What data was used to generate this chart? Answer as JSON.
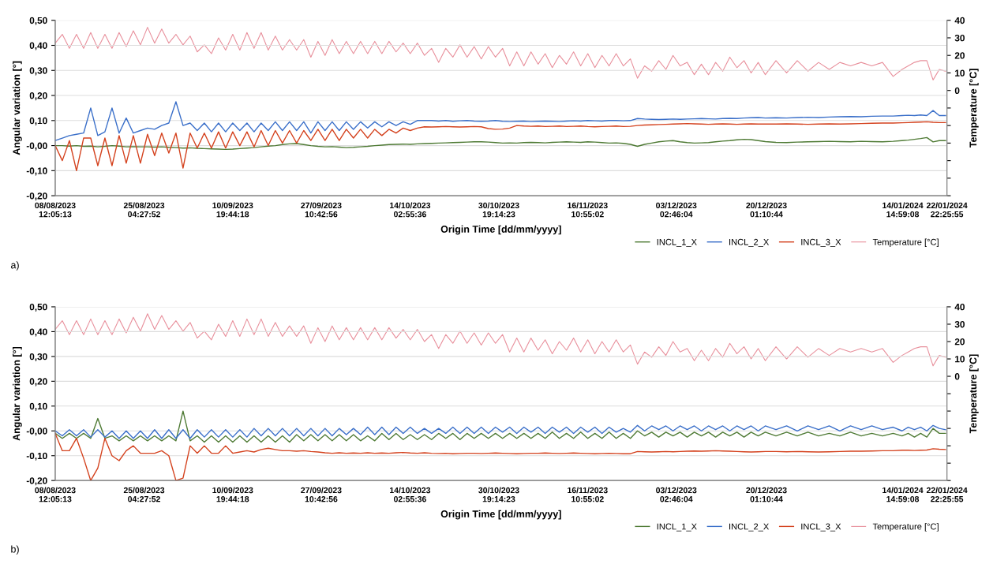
{
  "chart_data": [
    {
      "type": "line",
      "xlabel": "Origin Time [dd/mm/yyyy]",
      "ylabel": "Angular variation [°]",
      "y2label": "Temperature [°C]",
      "annotations": [
        "a)"
      ],
      "xlim": [
        "2023-08-08T12:00",
        "2024-01-22T22:25"
      ],
      "xticks": [
        {
          "value": "2023-08-08T12:05",
          "label": "08/08/2023\n12:05:13"
        },
        {
          "value": "2023-08-25T04:27",
          "label": "25/08/2023\n04:27:52"
        },
        {
          "value": "2023-09-10T19:44",
          "label": "10/09/2023\n19:44:18"
        },
        {
          "value": "2023-09-27T10:42",
          "label": "27/09/2023\n10:42:56"
        },
        {
          "value": "2023-10-14T02:55",
          "label": "14/10/2023\n02:55:36"
        },
        {
          "value": "2023-10-30T19:14",
          "label": "30/10/2023\n19:14:23"
        },
        {
          "value": "2023-11-16T10:55",
          "label": "16/11/2023\n10:55:02"
        },
        {
          "value": "2023-12-03T02:46",
          "label": "03/12/2023\n02:46:04"
        },
        {
          "value": "2023-12-20T01:10",
          "label": "20/12/2023\n01:10:44"
        },
        {
          "value": "2024-01-14T14:59",
          "label": "14/01/2024\n14:59:08"
        },
        {
          "value": "2024-01-22T22:25",
          "label": "22/01/2024\n22:25:55"
        }
      ],
      "ylim": [
        -0.2,
        0.5
      ],
      "yticks": [
        {
          "value": -0.2,
          "label": "-0,20"
        },
        {
          "value": -0.1,
          "label": "-0,10"
        },
        {
          "value": 0,
          "label": "-0,00"
        },
        {
          "value": 0.1,
          "label": "0,10"
        },
        {
          "value": 0.2,
          "label": "0,20"
        },
        {
          "value": 0.3,
          "label": "0,30"
        },
        {
          "value": 0.4,
          "label": "0,40"
        },
        {
          "value": 0.5,
          "label": "0,50"
        }
      ],
      "y2lim": [
        -60,
        40
      ],
      "y2ticks": [
        {
          "value": -60,
          "label": null
        },
        {
          "value": -50,
          "label": null
        },
        {
          "value": -40,
          "label": null
        },
        {
          "value": -30,
          "label": null
        },
        {
          "value": -20,
          "label": null
        },
        {
          "value": -10,
          "label": null
        },
        0,
        10,
        20,
        30,
        40
      ],
      "grid": "y",
      "legend": "bottom right",
      "x": [
        "2023-08-08T12:00",
        "2023-08-09T20:00",
        "2023-08-11T04:00",
        "2023-08-12T12:00",
        "2023-08-13T20:00",
        "2023-08-15T04:00",
        "2023-08-16T12:00",
        "2023-08-17T20:00",
        "2023-08-19T04:00",
        "2023-08-20T12:00",
        "2023-08-21T20:00",
        "2023-08-23T04:00",
        "2023-08-24T12:00",
        "2023-08-25T20:00",
        "2023-08-27T04:00",
        "2023-08-28T12:00",
        "2023-08-29T20:00",
        "2023-08-31T04:00",
        "2023-09-01T12:00",
        "2023-09-02T20:00",
        "2023-09-04T04:00",
        "2023-09-05T12:00",
        "2023-09-06T20:00",
        "2023-09-08T04:00",
        "2023-09-09T12:00",
        "2023-09-10T20:00",
        "2023-09-12T04:00",
        "2023-09-13T12:00",
        "2023-09-14T20:00",
        "2023-09-16T04:00",
        "2023-09-17T12:00",
        "2023-09-18T20:00",
        "2023-09-20T04:00",
        "2023-09-21T12:00",
        "2023-09-22T20:00",
        "2023-09-24T04:00",
        "2023-09-25T12:00",
        "2023-09-26T20:00",
        "2023-09-28T04:00",
        "2023-09-29T12:00",
        "2023-09-30T20:00",
        "2023-10-02T04:00",
        "2023-10-03T12:00",
        "2023-10-04T20:00",
        "2023-10-06T04:00",
        "2023-10-07T12:00",
        "2023-10-08T20:00",
        "2023-10-10T04:00",
        "2023-10-11T12:00",
        "2023-10-12T20:00",
        "2023-10-14T04:00",
        "2023-10-15T12:00",
        "2023-10-16T20:00",
        "2023-10-18T04:00",
        "2023-10-19T12:00",
        "2023-10-20T20:00",
        "2023-10-22T04:00",
        "2023-10-23T12:00",
        "2023-10-24T20:00",
        "2023-10-26T04:00",
        "2023-10-27T12:00",
        "2023-10-28T20:00",
        "2023-10-30T04:00",
        "2023-10-31T12:00",
        "2023-11-01T20:00",
        "2023-11-03T04:00",
        "2023-11-04T12:00",
        "2023-11-05T20:00",
        "2023-11-07T04:00",
        "2023-11-08T12:00",
        "2023-11-09T20:00",
        "2023-11-11T04:00",
        "2023-11-12T12:00",
        "2023-11-13T20:00",
        "2023-11-15T04:00",
        "2023-11-16T12:00",
        "2023-11-17T20:00",
        "2023-11-19T04:00",
        "2023-11-20T12:00",
        "2023-11-21T20:00",
        "2023-11-23T04:00",
        "2023-11-24T12:00",
        "2023-11-25T20:00",
        "2023-11-27T04:00",
        "2023-11-28T12:00",
        "2023-11-29T20:00",
        "2023-12-01T04:00",
        "2023-12-02T12:00",
        "2023-12-03T20:00",
        "2023-12-05T04:00",
        "2023-12-06T12:00",
        "2023-12-07T20:00",
        "2023-12-09T04:00",
        "2023-12-10T12:00",
        "2023-12-11T20:00",
        "2023-12-13T04:00",
        "2023-12-14T12:00",
        "2023-12-15T20:00",
        "2023-12-17T04:00",
        "2023-12-18T12:00",
        "2023-12-19T20:00",
        "2023-12-21T20:00",
        "2023-12-23T20:00",
        "2023-12-25T20:00",
        "2023-12-27T20:00",
        "2023-12-29T20:00",
        "2023-12-31T20:00",
        "2024-01-02T20:00",
        "2024-01-04T20:00",
        "2024-01-06T20:00",
        "2024-01-08T20:00",
        "2024-01-10T20:00",
        "2024-01-12T20:00",
        "2024-01-14T12:00",
        "2024-01-15T16:00",
        "2024-01-16T20:00",
        "2024-01-18T00:00",
        "2024-01-19T04:00",
        "2024-01-20T08:00",
        "2024-01-21T12:00",
        "2024-01-22T16:00"
      ],
      "series": [
        {
          "name": "INCL_1_X",
          "color": "#4e7a34",
          "values": [
            0.0,
            0.0,
            -0.002,
            0.0,
            -0.003,
            -0.002,
            -0.005,
            -0.003,
            0.0,
            -0.002,
            -0.005,
            -0.004,
            -0.005,
            -0.005,
            -0.006,
            -0.005,
            -0.007,
            -0.008,
            -0.01,
            -0.009,
            -0.011,
            -0.012,
            -0.013,
            -0.014,
            -0.015,
            -0.014,
            -0.012,
            -0.01,
            -0.008,
            -0.005,
            -0.002,
            0.0,
            0.004,
            0.007,
            0.008,
            0.004,
            0.0,
            -0.003,
            -0.005,
            -0.004,
            -0.006,
            -0.008,
            -0.007,
            -0.005,
            -0.003,
            0.0,
            0.002,
            0.004,
            0.005,
            0.006,
            0.005,
            0.007,
            0.008,
            0.009,
            0.01,
            0.011,
            0.012,
            0.013,
            0.014,
            0.015,
            0.015,
            0.014,
            0.012,
            0.01,
            0.011,
            0.01,
            0.012,
            0.013,
            0.012,
            0.011,
            0.013,
            0.014,
            0.015,
            0.014,
            0.013,
            0.015,
            0.014,
            0.012,
            0.01,
            0.011,
            0.009,
            0.005,
            -0.003,
            0.005,
            0.01,
            0.015,
            0.018,
            0.02,
            0.015,
            0.012,
            0.01,
            0.011,
            0.012,
            0.015,
            0.018,
            0.02,
            0.023,
            0.025,
            0.024,
            0.02,
            0.016,
            0.013,
            0.012,
            0.014,
            0.015,
            0.016,
            0.017,
            0.016,
            0.015,
            0.017,
            0.016,
            0.015,
            0.017,
            0.02,
            0.022,
            0.025,
            0.028,
            0.032,
            0.015,
            0.02,
            0.02
          ]
        },
        {
          "name": "INCL_2_X",
          "color": "#3a6fc9",
          "values": [
            0.02,
            0.03,
            0.04,
            0.045,
            0.05,
            0.15,
            0.04,
            0.055,
            0.15,
            0.05,
            0.11,
            0.05,
            0.06,
            0.07,
            0.065,
            0.08,
            0.09,
            0.175,
            0.08,
            0.09,
            0.06,
            0.09,
            0.055,
            0.09,
            0.055,
            0.09,
            0.06,
            0.09,
            0.055,
            0.09,
            0.06,
            0.095,
            0.06,
            0.095,
            0.06,
            0.095,
            0.05,
            0.095,
            0.06,
            0.095,
            0.06,
            0.095,
            0.065,
            0.095,
            0.07,
            0.095,
            0.075,
            0.095,
            0.08,
            0.095,
            0.085,
            0.1,
            0.1,
            0.1,
            0.098,
            0.1,
            0.097,
            0.099,
            0.1,
            0.098,
            0.097,
            0.098,
            0.1,
            0.097,
            0.096,
            0.097,
            0.098,
            0.096,
            0.097,
            0.098,
            0.097,
            0.096,
            0.098,
            0.099,
            0.098,
            0.1,
            0.099,
            0.098,
            0.1,
            0.1,
            0.099,
            0.1,
            0.108,
            0.106,
            0.105,
            0.104,
            0.105,
            0.106,
            0.105,
            0.106,
            0.107,
            0.108,
            0.107,
            0.106,
            0.108,
            0.109,
            0.108,
            0.11,
            0.111,
            0.112,
            0.11,
            0.111,
            0.11,
            0.112,
            0.113,
            0.112,
            0.114,
            0.115,
            0.116,
            0.115,
            0.117,
            0.118,
            0.118,
            0.12,
            0.121,
            0.12,
            0.122,
            0.12,
            0.14,
            0.12,
            0.12
          ]
        },
        {
          "name": "INCL_3_X",
          "color": "#d4421e",
          "values": [
            0.0,
            -0.06,
            0.02,
            -0.1,
            0.03,
            0.03,
            -0.08,
            0.03,
            -0.08,
            0.04,
            -0.07,
            0.04,
            -0.07,
            0.045,
            -0.04,
            0.05,
            -0.03,
            0.05,
            -0.09,
            0.05,
            -0.01,
            0.05,
            -0.01,
            0.055,
            -0.01,
            0.055,
            0.0,
            0.055,
            -0.005,
            0.06,
            0.0,
            0.06,
            0.01,
            0.06,
            0.01,
            0.06,
            0.02,
            0.065,
            0.02,
            0.065,
            0.02,
            0.065,
            0.03,
            0.065,
            0.03,
            0.065,
            0.04,
            0.065,
            0.05,
            0.07,
            0.06,
            0.07,
            0.075,
            0.074,
            0.075,
            0.076,
            0.075,
            0.074,
            0.075,
            0.076,
            0.075,
            0.068,
            0.065,
            0.066,
            0.07,
            0.08,
            0.078,
            0.077,
            0.078,
            0.076,
            0.077,
            0.078,
            0.076,
            0.077,
            0.078,
            0.076,
            0.075,
            0.076,
            0.077,
            0.078,
            0.076,
            0.077,
            0.08,
            0.082,
            0.083,
            0.084,
            0.085,
            0.086,
            0.087,
            0.088,
            0.087,
            0.086,
            0.085,
            0.086,
            0.087,
            0.086,
            0.085,
            0.086,
            0.087,
            0.086,
            0.086,
            0.086,
            0.087,
            0.086,
            0.085,
            0.086,
            0.087,
            0.086,
            0.087,
            0.088,
            0.089,
            0.09,
            0.09,
            0.091,
            0.092,
            0.093,
            0.094,
            0.095,
            0.093,
            0.092,
            0.092
          ]
        },
        {
          "name": "Temperature [°C]",
          "color": "#e8909c",
          "axis": "y2",
          "values": [
            27,
            32,
            24,
            32,
            24,
            33,
            24,
            32,
            24,
            33,
            25,
            34,
            26,
            36,
            27,
            35,
            27,
            32,
            26,
            31,
            22,
            26,
            21,
            30,
            23,
            32,
            23,
            33,
            24,
            33,
            23,
            31,
            23,
            29,
            23,
            29,
            19,
            28,
            20,
            29,
            21,
            28,
            21,
            28,
            21,
            28,
            21,
            28,
            22,
            27,
            21,
            27,
            20,
            24,
            16,
            24,
            19,
            26,
            19,
            25,
            18,
            25,
            19,
            24,
            14,
            22,
            14,
            22,
            15,
            21,
            13,
            20,
            15,
            22,
            14,
            21,
            13,
            20,
            14,
            21,
            14,
            18,
            7,
            14,
            11,
            17,
            12,
            20,
            14,
            16,
            9,
            15,
            9,
            16,
            11,
            19,
            13,
            17,
            10,
            16,
            9,
            17,
            10,
            17,
            11,
            16,
            12,
            16,
            14,
            16,
            14,
            16,
            8,
            12,
            14,
            16,
            17,
            17,
            6,
            12,
            11
          ]
        }
      ]
    },
    {
      "type": "line",
      "xlabel": "Origin Time [dd/mm/yyyy]",
      "ylabel": "Angular variation [°]",
      "y2label": "Temperature [°C]",
      "annotations": [
        "b)"
      ],
      "xlim": [
        "2023-08-08T12:00",
        "2024-01-22T22:25"
      ],
      "xticks": [
        {
          "value": "2023-08-08T12:05",
          "label": "08/08/2023\n12:05:13"
        },
        {
          "value": "2023-08-25T04:27",
          "label": "25/08/2023\n04:27:52"
        },
        {
          "value": "2023-09-10T19:44",
          "label": "10/09/2023\n19:44:18"
        },
        {
          "value": "2023-09-27T10:42",
          "label": "27/09/2023\n10:42:56"
        },
        {
          "value": "2023-10-14T02:55",
          "label": "14/10/2023\n02:55:36"
        },
        {
          "value": "2023-10-30T19:14",
          "label": "30/10/2023\n19:14:23"
        },
        {
          "value": "2023-11-16T10:55",
          "label": "16/11/2023\n10:55:02"
        },
        {
          "value": "2023-12-03T02:46",
          "label": "03/12/2023\n02:46:04"
        },
        {
          "value": "2023-12-20T01:10",
          "label": "20/12/2023\n01:10:44"
        },
        {
          "value": "2024-01-14T14:59",
          "label": "14/01/2024\n14:59:08"
        },
        {
          "value": "2024-01-22T22:25",
          "label": "22/01/2024\n22:25:55"
        }
      ],
      "ylim": [
        -0.2,
        0.5
      ],
      "yticks": [
        {
          "value": -0.2,
          "label": "-0,20"
        },
        {
          "value": -0.1,
          "label": "-0,10"
        },
        {
          "value": 0,
          "label": "-0,00"
        },
        {
          "value": 0.1,
          "label": "0,10"
        },
        {
          "value": 0.2,
          "label": "0,20"
        },
        {
          "value": 0.3,
          "label": "0,30"
        },
        {
          "value": 0.4,
          "label": "0,40"
        },
        {
          "value": 0.5,
          "label": "0,50"
        }
      ],
      "y2lim": [
        -60,
        40
      ],
      "y2ticks": [
        {
          "value": -60,
          "label": null
        },
        {
          "value": -50,
          "label": null
        },
        {
          "value": -40,
          "label": null
        },
        {
          "value": -30,
          "label": null
        },
        {
          "value": -20,
          "label": null
        },
        {
          "value": -10,
          "label": null
        },
        0,
        10,
        20,
        30,
        40
      ],
      "grid": "y",
      "legend": "bottom right",
      "x": [
        "2023-08-08T12:00",
        "2023-08-09T20:00",
        "2023-08-11T04:00",
        "2023-08-12T12:00",
        "2023-08-13T20:00",
        "2023-08-15T04:00",
        "2023-08-16T12:00",
        "2023-08-17T20:00",
        "2023-08-19T04:00",
        "2023-08-20T12:00",
        "2023-08-21T20:00",
        "2023-08-23T04:00",
        "2023-08-24T12:00",
        "2023-08-25T20:00",
        "2023-08-27T04:00",
        "2023-08-28T12:00",
        "2023-08-29T20:00",
        "2023-08-31T04:00",
        "2023-09-01T12:00",
        "2023-09-02T20:00",
        "2023-09-04T04:00",
        "2023-09-05T12:00",
        "2023-09-06T20:00",
        "2023-09-08T04:00",
        "2023-09-09T12:00",
        "2023-09-10T20:00",
        "2023-09-12T04:00",
        "2023-09-13T12:00",
        "2023-09-14T20:00",
        "2023-09-16T04:00",
        "2023-09-17T12:00",
        "2023-09-18T20:00",
        "2023-09-20T04:00",
        "2023-09-21T12:00",
        "2023-09-22T20:00",
        "2023-09-24T04:00",
        "2023-09-25T12:00",
        "2023-09-26T20:00",
        "2023-09-28T04:00",
        "2023-09-29T12:00",
        "2023-09-30T20:00",
        "2023-10-02T04:00",
        "2023-10-03T12:00",
        "2023-10-04T20:00",
        "2023-10-06T04:00",
        "2023-10-07T12:00",
        "2023-10-08T20:00",
        "2023-10-10T04:00",
        "2023-10-11T12:00",
        "2023-10-12T20:00",
        "2023-10-14T04:00",
        "2023-10-15T12:00",
        "2023-10-16T20:00",
        "2023-10-18T04:00",
        "2023-10-19T12:00",
        "2023-10-20T20:00",
        "2023-10-22T04:00",
        "2023-10-23T12:00",
        "2023-10-24T20:00",
        "2023-10-26T04:00",
        "2023-10-27T12:00",
        "2023-10-28T20:00",
        "2023-10-30T04:00",
        "2023-10-31T12:00",
        "2023-11-01T20:00",
        "2023-11-03T04:00",
        "2023-11-04T12:00",
        "2023-11-05T20:00",
        "2023-11-07T04:00",
        "2023-11-08T12:00",
        "2023-11-09T20:00",
        "2023-11-11T04:00",
        "2023-11-12T12:00",
        "2023-11-13T20:00",
        "2023-11-15T04:00",
        "2023-11-16T12:00",
        "2023-11-17T20:00",
        "2023-11-19T04:00",
        "2023-11-20T12:00",
        "2023-11-21T20:00",
        "2023-11-23T04:00",
        "2023-11-24T12:00",
        "2023-11-25T20:00",
        "2023-11-27T04:00",
        "2023-11-28T12:00",
        "2023-11-29T20:00",
        "2023-12-01T04:00",
        "2023-12-02T12:00",
        "2023-12-03T20:00",
        "2023-12-05T04:00",
        "2023-12-06T12:00",
        "2023-12-07T20:00",
        "2023-12-09T04:00",
        "2023-12-10T12:00",
        "2023-12-11T20:00",
        "2023-12-13T04:00",
        "2023-12-14T12:00",
        "2023-12-15T20:00",
        "2023-12-17T04:00",
        "2023-12-18T12:00",
        "2023-12-19T20:00",
        "2023-12-21T20:00",
        "2023-12-23T20:00",
        "2023-12-25T20:00",
        "2023-12-27T20:00",
        "2023-12-29T20:00",
        "2023-12-31T20:00",
        "2024-01-02T20:00",
        "2024-01-04T20:00",
        "2024-01-06T20:00",
        "2024-01-08T20:00",
        "2024-01-10T20:00",
        "2024-01-12T20:00",
        "2024-01-14T12:00",
        "2024-01-15T16:00",
        "2024-01-16T20:00",
        "2024-01-18T00:00",
        "2024-01-19T04:00",
        "2024-01-20T08:00",
        "2024-01-21T12:00",
        "2024-01-22T16:00"
      ],
      "series": [
        {
          "name": "INCL_1_X",
          "color": "#4e7a34",
          "values": [
            -0.01,
            -0.03,
            -0.01,
            -0.03,
            -0.01,
            -0.03,
            0.05,
            -0.03,
            -0.02,
            -0.04,
            -0.02,
            -0.04,
            -0.02,
            -0.04,
            -0.02,
            -0.04,
            -0.02,
            -0.04,
            0.08,
            -0.04,
            -0.02,
            -0.045,
            -0.02,
            -0.045,
            -0.02,
            -0.045,
            -0.02,
            -0.045,
            -0.02,
            -0.045,
            -0.02,
            -0.045,
            -0.02,
            -0.045,
            -0.015,
            -0.04,
            -0.015,
            -0.04,
            -0.015,
            -0.04,
            -0.015,
            -0.04,
            -0.015,
            -0.04,
            -0.02,
            -0.04,
            -0.01,
            -0.035,
            -0.01,
            -0.035,
            -0.015,
            -0.035,
            -0.015,
            -0.035,
            -0.01,
            -0.03,
            -0.01,
            -0.035,
            -0.01,
            -0.03,
            -0.01,
            -0.03,
            -0.01,
            -0.03,
            -0.01,
            -0.03,
            -0.01,
            -0.03,
            -0.01,
            -0.03,
            -0.005,
            -0.03,
            -0.01,
            -0.03,
            -0.005,
            -0.03,
            -0.01,
            -0.03,
            -0.005,
            -0.03,
            -0.01,
            -0.03,
            0.0,
            -0.02,
            -0.005,
            -0.025,
            -0.005,
            -0.02,
            -0.005,
            -0.025,
            -0.005,
            -0.02,
            -0.005,
            -0.025,
            -0.005,
            -0.02,
            -0.005,
            -0.025,
            -0.005,
            -0.02,
            -0.005,
            -0.02,
            -0.005,
            -0.02,
            -0.005,
            -0.02,
            -0.01,
            -0.02,
            -0.005,
            -0.02,
            -0.01,
            -0.02,
            -0.01,
            -0.02,
            -0.01,
            -0.025,
            -0.01,
            -0.025,
            0.01,
            -0.01,
            -0.01
          ]
        },
        {
          "name": "INCL_2_X",
          "color": "#3a6fc9",
          "values": [
            0.0,
            -0.02,
            0.005,
            -0.02,
            0.005,
            -0.025,
            0.005,
            -0.025,
            0.0,
            -0.03,
            0.0,
            -0.03,
            0.0,
            -0.03,
            0.005,
            -0.03,
            0.005,
            -0.03,
            0.005,
            -0.03,
            0.005,
            -0.025,
            0.005,
            -0.025,
            0.005,
            -0.025,
            0.005,
            -0.025,
            0.01,
            -0.02,
            0.01,
            -0.02,
            0.01,
            -0.02,
            0.01,
            -0.02,
            0.01,
            -0.02,
            0.01,
            -0.02,
            0.01,
            -0.015,
            0.01,
            -0.015,
            0.015,
            -0.015,
            0.015,
            -0.015,
            0.015,
            -0.01,
            0.015,
            -0.01,
            0.01,
            -0.01,
            0.01,
            -0.01,
            0.015,
            -0.01,
            0.015,
            -0.01,
            0.015,
            -0.01,
            0.015,
            -0.005,
            0.015,
            -0.01,
            0.015,
            -0.005,
            0.015,
            -0.01,
            0.015,
            -0.005,
            0.015,
            -0.01,
            0.015,
            -0.005,
            0.015,
            -0.01,
            0.015,
            -0.005,
            0.01,
            -0.005,
            0.022,
            0.0,
            0.02,
            0.005,
            0.02,
            0.0,
            0.02,
            0.005,
            0.02,
            0.0,
            0.02,
            0.005,
            0.02,
            0.0,
            0.02,
            0.005,
            0.02,
            0.0,
            0.02,
            0.005,
            0.02,
            0.0,
            0.02,
            0.005,
            0.02,
            0.0,
            0.02,
            0.005,
            0.02,
            0.005,
            0.015,
            0.0,
            0.015,
            0.005,
            0.015,
            0.0,
            0.022,
            0.01,
            0.005
          ]
        },
        {
          "name": "INCL_3_X",
          "color": "#d4421e",
          "values": [
            -0.01,
            -0.08,
            -0.08,
            -0.03,
            -0.11,
            -0.2,
            -0.15,
            -0.03,
            -0.1,
            -0.12,
            -0.08,
            -0.06,
            -0.09,
            -0.09,
            -0.09,
            -0.08,
            -0.1,
            -0.2,
            -0.19,
            -0.06,
            -0.09,
            -0.06,
            -0.09,
            -0.09,
            -0.06,
            -0.09,
            -0.085,
            -0.08,
            -0.085,
            -0.075,
            -0.07,
            -0.075,
            -0.08,
            -0.08,
            -0.082,
            -0.08,
            -0.083,
            -0.085,
            -0.088,
            -0.09,
            -0.088,
            -0.09,
            -0.089,
            -0.09,
            -0.088,
            -0.09,
            -0.089,
            -0.09,
            -0.088,
            -0.087,
            -0.089,
            -0.09,
            -0.088,
            -0.09,
            -0.091,
            -0.09,
            -0.092,
            -0.091,
            -0.09,
            -0.09,
            -0.091,
            -0.09,
            -0.089,
            -0.09,
            -0.091,
            -0.092,
            -0.091,
            -0.09,
            -0.09,
            -0.089,
            -0.09,
            -0.091,
            -0.09,
            -0.089,
            -0.09,
            -0.091,
            -0.092,
            -0.091,
            -0.09,
            -0.091,
            -0.092,
            -0.092,
            -0.083,
            -0.084,
            -0.085,
            -0.084,
            -0.083,
            -0.084,
            -0.083,
            -0.082,
            -0.081,
            -0.082,
            -0.081,
            -0.08,
            -0.081,
            -0.082,
            -0.083,
            -0.084,
            -0.085,
            -0.084,
            -0.083,
            -0.083,
            -0.084,
            -0.083,
            -0.084,
            -0.085,
            -0.084,
            -0.083,
            -0.082,
            -0.082,
            -0.081,
            -0.08,
            -0.08,
            -0.078,
            -0.078,
            -0.079,
            -0.078,
            -0.077,
            -0.072,
            -0.074,
            -0.075
          ]
        },
        {
          "name": "Temperature [°C]",
          "color": "#e8909c",
          "axis": "y2",
          "values": [
            27,
            32,
            24,
            32,
            24,
            33,
            24,
            32,
            24,
            33,
            25,
            34,
            26,
            36,
            27,
            35,
            27,
            32,
            26,
            31,
            22,
            26,
            21,
            30,
            23,
            32,
            23,
            33,
            24,
            33,
            23,
            31,
            23,
            29,
            23,
            29,
            19,
            28,
            20,
            29,
            21,
            28,
            21,
            28,
            21,
            28,
            21,
            28,
            22,
            27,
            21,
            27,
            20,
            24,
            16,
            24,
            19,
            26,
            19,
            25,
            18,
            25,
            19,
            24,
            14,
            22,
            14,
            22,
            15,
            21,
            13,
            20,
            15,
            22,
            14,
            21,
            13,
            20,
            14,
            21,
            14,
            18,
            7,
            14,
            11,
            17,
            12,
            20,
            14,
            16,
            9,
            15,
            9,
            16,
            11,
            19,
            13,
            17,
            10,
            16,
            9,
            17,
            10,
            17,
            11,
            16,
            12,
            16,
            14,
            16,
            14,
            16,
            8,
            12,
            14,
            16,
            17,
            17,
            6,
            12,
            11
          ]
        }
      ]
    }
  ]
}
